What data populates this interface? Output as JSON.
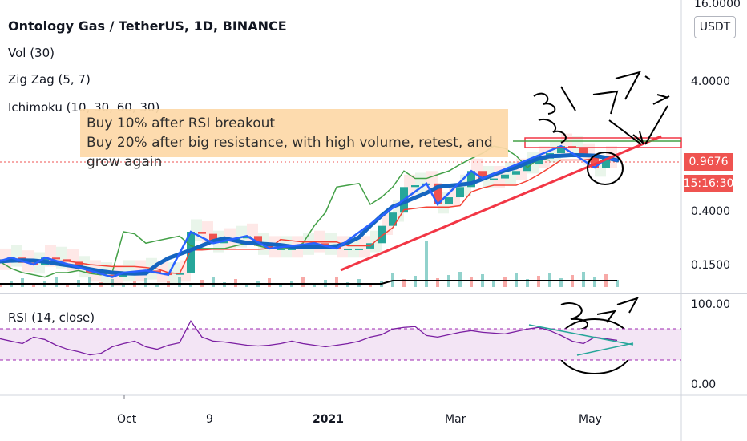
{
  "header": {
    "symbol_title": "Ontology Gas / TetherUS, 1D, BINANCE",
    "indicators": [
      "Vol (30)",
      "Zig Zag (5, 7)",
      "Ichimoku (10, 30, 60, 30)"
    ],
    "rsi_label": "RSI (14, close)"
  },
  "annotation": {
    "line1": "Buy 10% after RSI breakout",
    "line2": "Buy 20% after big resistance, with high volume, retest, and grow again"
  },
  "price_axis": {
    "unit": "USDT",
    "top_tick": "16.0000",
    "ticks": [
      "4.0000",
      "0.4000",
      "0.1500"
    ],
    "last_price": "0.9676",
    "countdown": "15:16:30",
    "tag_color": "#ef5350"
  },
  "rsi_axis": {
    "ticks": [
      "100.00",
      "0.00"
    ]
  },
  "time_axis": {
    "ticks": [
      "Oct",
      "9",
      "2021",
      "Mar",
      "May"
    ]
  },
  "chart_data": {
    "type": "line",
    "yscale": "log",
    "series_prices": [
      0.16,
      0.17,
      0.155,
      0.15,
      0.17,
      0.165,
      0.158,
      0.14,
      0.13,
      0.125,
      0.12,
      0.13,
      0.13,
      0.135,
      0.128,
      0.125,
      0.13,
      0.27,
      0.26,
      0.22,
      0.23,
      0.24,
      0.25,
      0.21,
      0.2,
      0.2,
      0.2,
      0.21,
      0.22,
      0.21,
      0.2,
      0.2,
      0.2,
      0.22,
      0.3,
      0.38,
      0.6,
      0.62,
      0.64,
      0.44,
      0.5,
      0.6,
      0.8,
      0.7,
      0.7,
      0.75,
      0.8,
      0.9,
      1.0,
      1.1,
      1.25,
      1.2,
      1.05,
      0.85,
      1.0,
      0.97
    ],
    "rsi": [
      58,
      55,
      52,
      60,
      57,
      50,
      45,
      42,
      38,
      40,
      48,
      52,
      55,
      48,
      45,
      50,
      53,
      80,
      60,
      55,
      54,
      52,
      50,
      49,
      50,
      52,
      55,
      52,
      50,
      48,
      50,
      52,
      55,
      60,
      63,
      70,
      72,
      73,
      62,
      60,
      63,
      66,
      68,
      66,
      65,
      64,
      67,
      70,
      72,
      68,
      62,
      55,
      52,
      60,
      58,
      56
    ],
    "rsi_band": [
      30,
      70
    ],
    "colors": {
      "up": "#26a69a",
      "down": "#ef5350",
      "zigzag": "#2962ff",
      "trendline": "#f23645",
      "lagging": "#43a047",
      "ichimoku_base": "#f44336",
      "ichimoku_conv": "#1565c0",
      "rsi": "#7b1fa2",
      "rsi_fill": "#f3e5f5"
    }
  }
}
